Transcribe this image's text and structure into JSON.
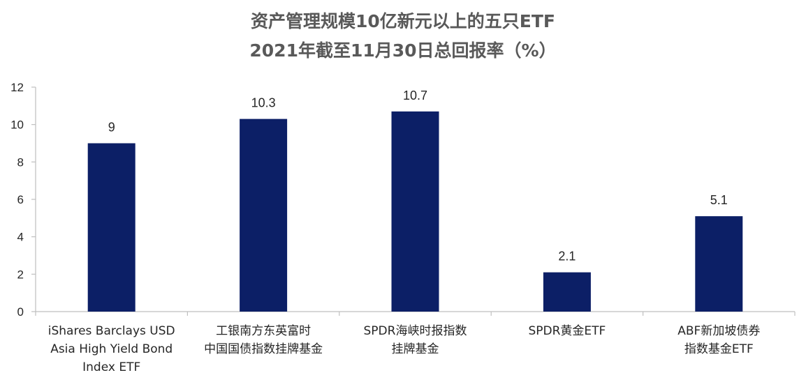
{
  "chart_data": {
    "type": "bar",
    "title": [
      "资产管理规模10亿新元以上的五只ETF",
      "2021年截至11月30日总回报率（%）"
    ],
    "categories": [
      [
        "iShares Barclays USD",
        "Asia High Yield Bond",
        "Index ETF"
      ],
      [
        "工银南方东英富时",
        "中国国债指数挂牌基金"
      ],
      [
        "SPDR海峡时报指数",
        "挂牌基金"
      ],
      [
        "SPDR黄金ETF"
      ],
      [
        "ABF新加坡债券",
        "指数基金ETF"
      ]
    ],
    "values": [
      9,
      10.3,
      10.7,
      2.1,
      5.1
    ],
    "data_labels": [
      "9",
      "10.3",
      "10.7",
      "2.1",
      "5.1"
    ],
    "ylim": [
      0,
      12
    ],
    "yticks": [
      0,
      2,
      4,
      6,
      8,
      10,
      12
    ],
    "grid": false,
    "legend": "none",
    "colors": {
      "bar": "#0C1F66",
      "axis": "#BFBFBF",
      "title": "#595959",
      "text": "#262626"
    }
  }
}
